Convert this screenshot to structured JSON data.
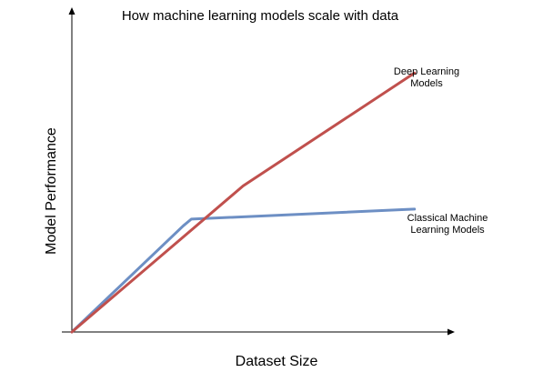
{
  "chart_data": {
    "type": "line",
    "title": "How machine learning models scale with data",
    "xlabel": "Dataset Size",
    "ylabel": "Model Performance",
    "xlim": [
      0,
      100
    ],
    "ylim": [
      0,
      100
    ],
    "grid": false,
    "axis_ticks": false,
    "series": [
      {
        "label_lines": [
          "Deep Learning",
          "Models"
        ],
        "color": "#c0504d",
        "x": [
          0,
          43,
          86
        ],
        "y": [
          0,
          44,
          78
        ]
      },
      {
        "label_lines": [
          "Classical Machine",
          "Learning Models"
        ],
        "color": "#6d8fc4",
        "x": [
          0,
          28,
          30,
          86
        ],
        "y": [
          0,
          32,
          34,
          37
        ]
      }
    ]
  }
}
